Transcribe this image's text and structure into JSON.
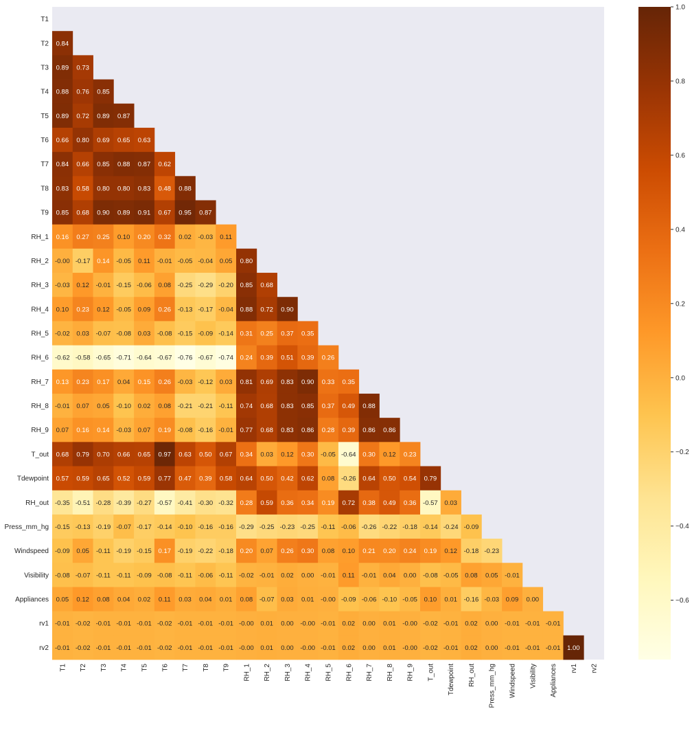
{
  "chart_data": {
    "type": "heatmap",
    "title": "",
    "xlabel": "",
    "ylabel": "",
    "mask": "upper-triangle",
    "colormap": "YlOrBr",
    "colorbar": {
      "range": [
        -0.76,
        1.0
      ],
      "ticks": [
        1.0,
        0.8,
        0.6,
        0.4,
        0.2,
        0.0,
        -0.2,
        -0.4,
        -0.6
      ],
      "tick_labels": [
        "1.0",
        "0.8",
        "0.6",
        "0.4",
        "0.2",
        "0.0",
        "−0.2",
        "−0.4",
        "−0.6"
      ]
    },
    "colors": {
      "plot_background": "#eaeaf2"
    },
    "labels": [
      "T1",
      "T2",
      "T3",
      "T4",
      "T5",
      "T6",
      "T7",
      "T8",
      "T9",
      "RH_1",
      "RH_2",
      "RH_3",
      "RH_4",
      "RH_5",
      "RH_6",
      "RH_7",
      "RH_8",
      "RH_9",
      "T_out",
      "Tdewpoint",
      "RH_out",
      "Press_mm_hg",
      "Windspeed",
      "Visibility",
      "Appliances",
      "rv1",
      "rv2"
    ],
    "rows": [
      [],
      [
        "0.84"
      ],
      [
        "0.89",
        "0.73"
      ],
      [
        "0.88",
        "0.76",
        "0.85"
      ],
      [
        "0.89",
        "0.72",
        "0.89",
        "0.87"
      ],
      [
        "0.66",
        "0.80",
        "0.69",
        "0.65",
        "0.63"
      ],
      [
        "0.84",
        "0.66",
        "0.85",
        "0.88",
        "0.87",
        "0.62"
      ],
      [
        "0.83",
        "0.58",
        "0.80",
        "0.80",
        "0.83",
        "0.48",
        "0.88"
      ],
      [
        "0.85",
        "0.68",
        "0.90",
        "0.89",
        "0.91",
        "0.67",
        "0.95",
        "0.87"
      ],
      [
        "0.16",
        "0.27",
        "0.25",
        "0.10",
        "0.20",
        "0.32",
        "0.02",
        "-0.03",
        "0.11"
      ],
      [
        "-0.00",
        "-0.17",
        "0.14",
        "-0.05",
        "0.11",
        "-0.01",
        "-0.05",
        "-0.04",
        "0.05",
        "0.80"
      ],
      [
        "-0.03",
        "0.12",
        "-0.01",
        "-0.15",
        "-0.06",
        "0.08",
        "-0.25",
        "-0.29",
        "-0.20",
        "0.85",
        "0.68"
      ],
      [
        "0.10",
        "0.23",
        "0.12",
        "-0.05",
        "0.09",
        "0.26",
        "-0.13",
        "-0.17",
        "-0.04",
        "0.88",
        "0.72",
        "0.90"
      ],
      [
        "-0.02",
        "0.03",
        "-0.07",
        "-0.08",
        "0.03",
        "-0.08",
        "-0.15",
        "-0.09",
        "-0.14",
        "0.31",
        "0.25",
        "0.37",
        "0.35"
      ],
      [
        "-0.62",
        "-0.58",
        "-0.65",
        "-0.71",
        "-0.64",
        "-0.67",
        "-0.76",
        "-0.67",
        "-0.74",
        "0.24",
        "0.39",
        "0.51",
        "0.39",
        "0.26"
      ],
      [
        "0.13",
        "0.23",
        "0.17",
        "0.04",
        "0.15",
        "0.26",
        "-0.03",
        "-0.12",
        "0.03",
        "0.81",
        "0.69",
        "0.83",
        "0.90",
        "0.33",
        "0.35"
      ],
      [
        "-0.01",
        "0.07",
        "0.05",
        "-0.10",
        "0.02",
        "0.08",
        "-0.21",
        "-0.21",
        "-0.11",
        "0.74",
        "0.68",
        "0.83",
        "0.85",
        "0.37",
        "0.49",
        "0.88"
      ],
      [
        "0.07",
        "0.16",
        "0.14",
        "-0.03",
        "0.07",
        "0.19",
        "-0.08",
        "-0.16",
        "-0.01",
        "0.77",
        "0.68",
        "0.83",
        "0.86",
        "0.28",
        "0.39",
        "0.86",
        "0.86"
      ],
      [
        "0.68",
        "0.79",
        "0.70",
        "0.66",
        "0.65",
        "0.97",
        "0.63",
        "0.50",
        "0.67",
        "0.34",
        "0.03",
        "0.12",
        "0.30",
        "-0.05",
        "-0.64",
        "0.30",
        "0.12",
        "0.23"
      ],
      [
        "0.57",
        "0.59",
        "0.65",
        "0.52",
        "0.59",
        "0.77",
        "0.47",
        "0.39",
        "0.58",
        "0.64",
        "0.50",
        "0.42",
        "0.62",
        "0.08",
        "-0.26",
        "0.64",
        "0.50",
        "0.54",
        "0.79"
      ],
      [
        "-0.35",
        "-0.51",
        "-0.28",
        "-0.39",
        "-0.27",
        "-0.57",
        "-0.41",
        "-0.30",
        "-0.32",
        "0.28",
        "0.59",
        "0.36",
        "0.34",
        "0.19",
        "0.72",
        "0.38",
        "0.49",
        "0.36",
        "-0.57",
        "0.03"
      ],
      [
        "-0.15",
        "-0.13",
        "-0.19",
        "-0.07",
        "-0.17",
        "-0.14",
        "-0.10",
        "-0.16",
        "-0.16",
        "-0.29",
        "-0.25",
        "-0.23",
        "-0.25",
        "-0.11",
        "-0.06",
        "-0.26",
        "-0.22",
        "-0.18",
        "-0.14",
        "-0.24",
        "-0.09"
      ],
      [
        "-0.09",
        "0.05",
        "-0.11",
        "-0.19",
        "-0.15",
        "0.17",
        "-0.19",
        "-0.22",
        "-0.18",
        "0.20",
        "0.07",
        "0.26",
        "0.30",
        "0.08",
        "0.10",
        "0.21",
        "0.20",
        "0.24",
        "0.19",
        "0.12",
        "-0.18",
        "-0.23"
      ],
      [
        "-0.08",
        "-0.07",
        "-0.11",
        "-0.11",
        "-0.09",
        "-0.08",
        "-0.11",
        "-0.06",
        "-0.11",
        "-0.02",
        "-0.01",
        "0.02",
        "0.00",
        "-0.01",
        "0.11",
        "-0.01",
        "0.04",
        "0.00",
        "-0.08",
        "-0.05",
        "0.08",
        "0.05",
        "-0.01"
      ],
      [
        "0.05",
        "0.12",
        "0.08",
        "0.04",
        "0.02",
        "0.11",
        "0.03",
        "0.04",
        "0.01",
        "0.08",
        "-0.07",
        "0.03",
        "0.01",
        "-0.00",
        "-0.09",
        "-0.06",
        "-0.10",
        "-0.05",
        "0.10",
        "0.01",
        "-0.16",
        "-0.03",
        "0.09",
        "0.00"
      ],
      [
        "-0.01",
        "-0.02",
        "-0.01",
        "-0.01",
        "-0.01",
        "-0.02",
        "-0.01",
        "-0.01",
        "-0.01",
        "-0.00",
        "0.01",
        "0.00",
        "-0.00",
        "-0.01",
        "0.02",
        "0.00",
        "0.01",
        "-0.00",
        "-0.02",
        "-0.01",
        "0.02",
        "0.00",
        "-0.01",
        "-0.01",
        "-0.01"
      ],
      [
        "-0.01",
        "-0.02",
        "-0.01",
        "-0.01",
        "-0.01",
        "-0.02",
        "-0.01",
        "-0.01",
        "-0.01",
        "-0.00",
        "0.01",
        "0.00",
        "-0.00",
        "-0.01",
        "0.02",
        "0.00",
        "0.01",
        "-0.00",
        "-0.02",
        "-0.01",
        "0.02",
        "0.00",
        "-0.01",
        "-0.01",
        "-0.01",
        "1.00"
      ]
    ]
  }
}
